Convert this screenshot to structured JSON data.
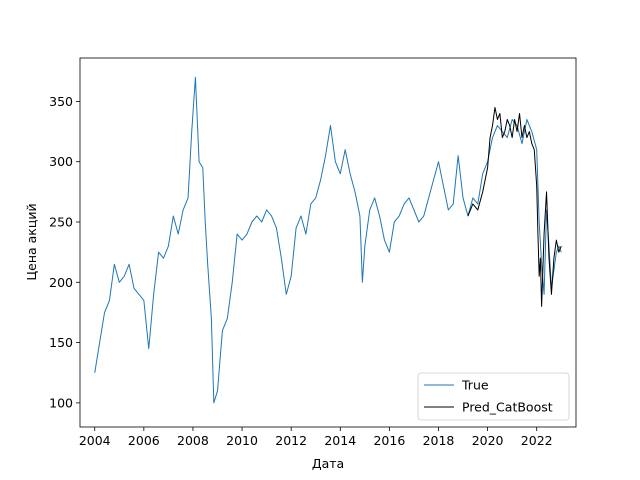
{
  "chart_data": {
    "type": "line",
    "xlabel": "Дата",
    "ylabel": "Цена акций",
    "xlim": [
      2003.4,
      2023.6
    ],
    "ylim": [
      80,
      386
    ],
    "xticks": [
      2004,
      2006,
      2008,
      2010,
      2012,
      2014,
      2016,
      2018,
      2020,
      2022
    ],
    "yticks": [
      100,
      150,
      200,
      250,
      300,
      350
    ],
    "grid": false,
    "legend_position": "bottom-right",
    "series": [
      {
        "name": "True",
        "color": "#1f77b4",
        "x": [
          2004.0,
          2004.2,
          2004.4,
          2004.6,
          2004.8,
          2005.0,
          2005.2,
          2005.4,
          2005.6,
          2005.8,
          2006.0,
          2006.2,
          2006.4,
          2006.6,
          2006.8,
          2007.0,
          2007.2,
          2007.4,
          2007.6,
          2007.8,
          2007.95,
          2008.1,
          2008.25,
          2008.4,
          2008.5,
          2008.6,
          2008.75,
          2008.85,
          2009.0,
          2009.2,
          2009.4,
          2009.6,
          2009.8,
          2010.0,
          2010.2,
          2010.4,
          2010.6,
          2010.8,
          2011.0,
          2011.2,
          2011.4,
          2011.6,
          2011.8,
          2012.0,
          2012.2,
          2012.4,
          2012.6,
          2012.8,
          2013.0,
          2013.2,
          2013.4,
          2013.6,
          2013.8,
          2014.0,
          2014.2,
          2014.4,
          2014.6,
          2014.8,
          2014.9,
          2015.0,
          2015.2,
          2015.4,
          2015.6,
          2015.8,
          2016.0,
          2016.2,
          2016.4,
          2016.6,
          2016.8,
          2017.0,
          2017.2,
          2017.4,
          2017.6,
          2017.8,
          2018.0,
          2018.2,
          2018.4,
          2018.6,
          2018.8,
          2019.0,
          2019.2,
          2019.4,
          2019.6,
          2019.8,
          2020.0,
          2020.2,
          2020.4,
          2020.6,
          2020.8,
          2021.0,
          2021.2,
          2021.4,
          2021.6,
          2021.8,
          2022.0,
          2022.1,
          2022.2,
          2022.3,
          2022.4,
          2022.5,
          2022.6,
          2022.7,
          2022.8,
          2022.9,
          2023.0
        ],
        "y": [
          125,
          150,
          175,
          185,
          215,
          200,
          205,
          215,
          195,
          190,
          185,
          145,
          190,
          225,
          220,
          230,
          255,
          240,
          260,
          270,
          325,
          370,
          300,
          295,
          250,
          215,
          170,
          100,
          110,
          160,
          170,
          200,
          240,
          235,
          240,
          250,
          255,
          250,
          260,
          255,
          245,
          220,
          190,
          205,
          245,
          255,
          240,
          265,
          270,
          285,
          305,
          330,
          300,
          290,
          310,
          290,
          275,
          255,
          200,
          230,
          260,
          270,
          255,
          235,
          225,
          250,
          255,
          265,
          270,
          260,
          250,
          255,
          270,
          285,
          300,
          280,
          260,
          265,
          305,
          270,
          255,
          270,
          265,
          290,
          300,
          320,
          330,
          325,
          320,
          335,
          330,
          315,
          335,
          325,
          310,
          250,
          215,
          190,
          260,
          230,
          195,
          210,
          225,
          230,
          225
        ]
      },
      {
        "name": "Pred_CatBoost",
        "color": "#000000",
        "x": [
          2019.2,
          2019.4,
          2019.6,
          2019.8,
          2020.0,
          2020.1,
          2020.2,
          2020.3,
          2020.4,
          2020.5,
          2020.6,
          2020.7,
          2020.8,
          2020.9,
          2021.0,
          2021.1,
          2021.2,
          2021.3,
          2021.4,
          2021.5,
          2021.6,
          2021.7,
          2021.8,
          2021.9,
          2022.0,
          2022.05,
          2022.1,
          2022.15,
          2022.2,
          2022.3,
          2022.4,
          2022.5,
          2022.6,
          2022.7,
          2022.8,
          2022.9,
          2023.0
        ],
        "y": [
          255,
          265,
          260,
          275,
          295,
          320,
          330,
          345,
          335,
          340,
          320,
          325,
          335,
          330,
          320,
          335,
          325,
          340,
          320,
          330,
          320,
          325,
          315,
          310,
          280,
          240,
          205,
          220,
          180,
          240,
          275,
          220,
          190,
          220,
          235,
          225,
          230
        ]
      }
    ]
  }
}
